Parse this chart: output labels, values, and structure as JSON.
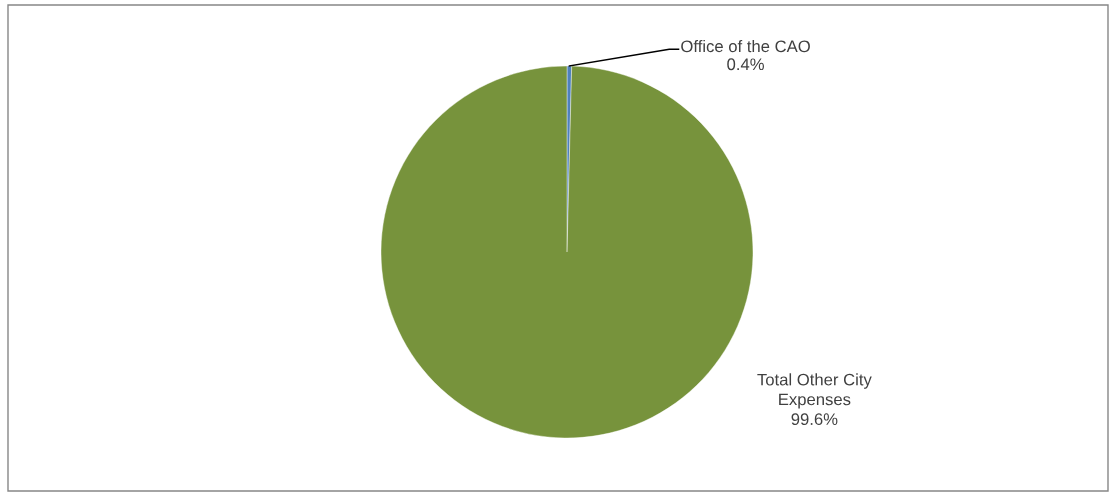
{
  "chart_data": {
    "type": "pie",
    "categories": [
      "Office of the CAO",
      "Total Other City Expenses"
    ],
    "values": [
      0.4,
      99.6
    ],
    "colors": [
      "#4f81bd",
      "#77933c"
    ],
    "value_labels": [
      "0.4%",
      "99.6%"
    ],
    "legend": false
  }
}
